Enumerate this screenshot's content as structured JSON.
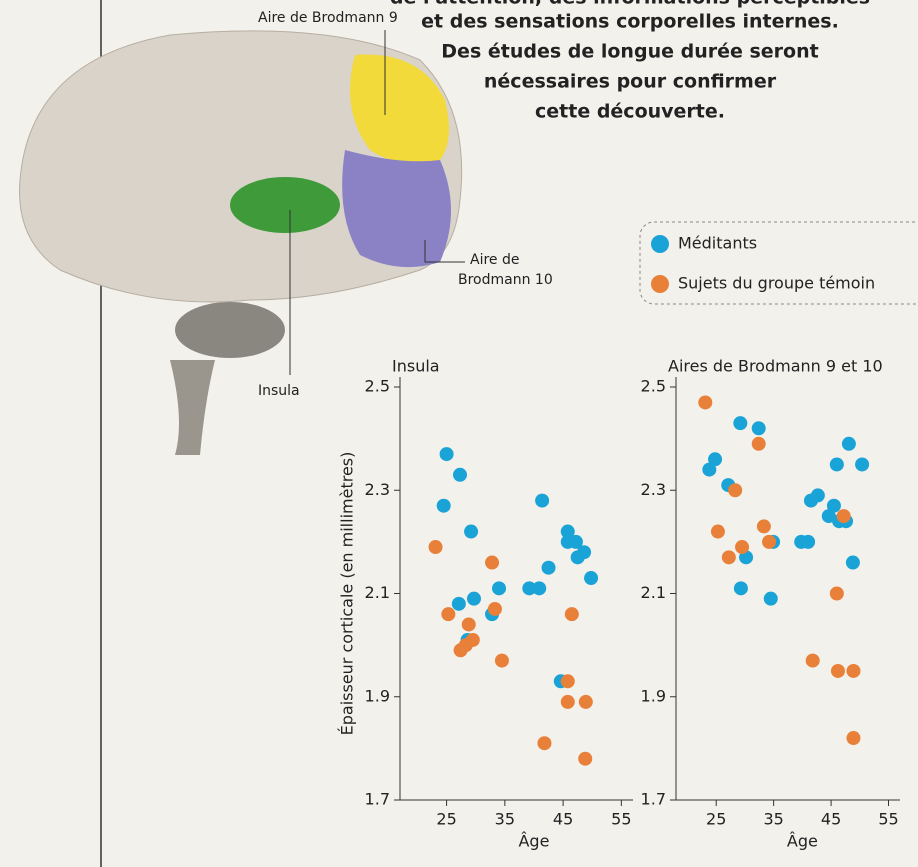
{
  "caption": [
    "de l'attention, des informations perceptibles",
    "et des sensations corporelles internes.",
    "Des études de longue durée seront",
    "nécessaires pour confirmer",
    "cette découverte."
  ],
  "brain_labels": {
    "area9": "Aire de Brodmann 9",
    "area10": [
      "Aire de",
      "Brodmann 10"
    ],
    "insula": "Insula"
  },
  "chart_data": [
    {
      "type": "scatter",
      "title": "Insula",
      "xlabel": "Âge",
      "ylabel": "Épaisseur corticale (en millimètres)",
      "xlim": [
        17,
        57
      ],
      "ylim": [
        1.7,
        2.5
      ],
      "xticks": [
        25,
        35,
        45,
        55
      ],
      "yticks": [
        1.7,
        1.9,
        2.1,
        2.3,
        2.5
      ],
      "series": [
        {
          "name": "Méditants",
          "color": "#1aa3d6",
          "x": [
            24.5,
            25,
            27.3,
            29.2,
            27.1,
            29.7,
            28.6,
            32.8,
            34,
            39.2,
            40.9,
            41.4,
            42.5,
            44.6,
            45.8,
            45.8,
            47.2,
            48.6,
            47.5,
            49.8
          ],
          "values": [
            2.27,
            2.37,
            2.33,
            2.22,
            2.08,
            2.09,
            2.01,
            2.06,
            2.11,
            2.11,
            2.11,
            2.28,
            2.15,
            1.93,
            2.22,
            2.2,
            2.2,
            2.18,
            2.17,
            2.13
          ]
        },
        {
          "name": "Sujets du groupe témoin",
          "color": "#e8803a",
          "x": [
            23.1,
            25.3,
            27.4,
            28.8,
            29.5,
            28.3,
            32.8,
            33.3,
            34.5,
            41.8,
            45.8,
            45.8,
            46.5,
            48.9,
            48.8
          ],
          "values": [
            2.19,
            2.06,
            1.99,
            2.04,
            2.01,
            2.0,
            2.16,
            2.07,
            1.97,
            1.81,
            1.93,
            1.89,
            2.06,
            1.89,
            1.78
          ]
        }
      ]
    },
    {
      "type": "scatter",
      "title": "Aires de Brodmann 9 et 10",
      "xlabel": "Âge",
      "xlim": [
        18,
        57
      ],
      "ylim": [
        1.7,
        2.5
      ],
      "xticks": [
        25,
        35,
        45,
        55
      ],
      "yticks": [
        1.7,
        1.9,
        2.1,
        2.3,
        2.5
      ],
      "series": [
        {
          "color": "#1aa3d6",
          "x": [
            23.8,
            24.8,
            27.1,
            29.2,
            29.3,
            30.2,
            32.4,
            34.5,
            34.9,
            39.8,
            41,
            41.5,
            42.7,
            44.6,
            45.5,
            46,
            46.4,
            47.6,
            48.1,
            48.8,
            50.4
          ],
          "values": [
            2.34,
            2.36,
            2.31,
            2.43,
            2.11,
            2.17,
            2.42,
            2.09,
            2.2,
            2.2,
            2.2,
            2.28,
            2.29,
            2.25,
            2.27,
            2.35,
            2.24,
            2.24,
            2.39,
            2.16,
            2.35
          ]
        },
        {
          "color": "#e8803a",
          "x": [
            23.1,
            25.3,
            28.3,
            27.2,
            29.5,
            32.4,
            33.3,
            34.2,
            46,
            47.2,
            41.8,
            46.2,
            48.9,
            48.9
          ],
          "values": [
            2.47,
            2.22,
            2.3,
            2.17,
            2.19,
            2.39,
            2.23,
            2.2,
            2.1,
            2.25,
            1.97,
            1.95,
            1.95,
            1.82
          ]
        }
      ]
    }
  ]
}
